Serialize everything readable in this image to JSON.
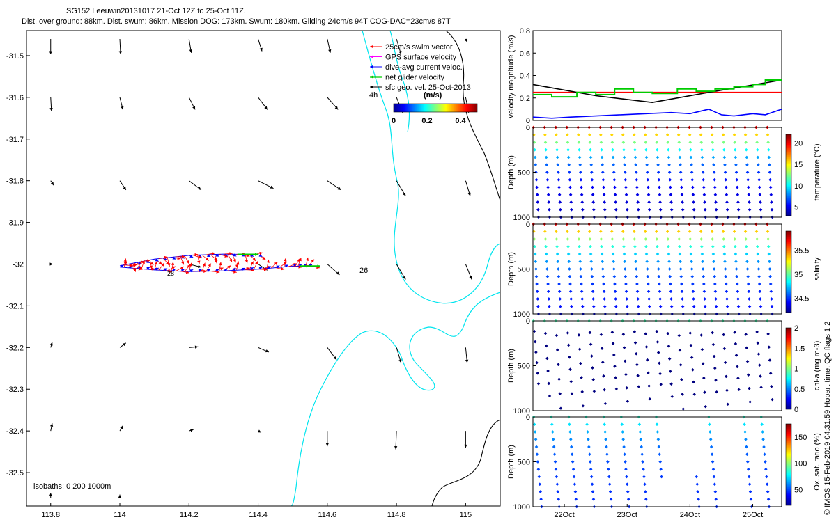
{
  "header": {
    "line1": "SG152 Leeuwin20131017 21-Oct 12Z to 25-Oct 11Z.",
    "line2": "Dist. over ground: 88km. Dist. swum: 86km. Mission DOG: 173km. Swum: 180km. Gliding 24cm/s 94T COG-DAC=23cm/s 87T"
  },
  "side_credit": "© IMOS 15-Feb-2019 04:31:59 Hobart time. QC flags 1  2",
  "colors": {
    "swim": "#ff0000",
    "gps": "#ff00ff",
    "dac": "#0000ff",
    "net": "#00cc00",
    "sfc": "#000000",
    "coast": "#00e5ee",
    "isobath": "#000000"
  },
  "chart_data": [
    {
      "id": "map",
      "type": "scatter",
      "title": "",
      "x_ticks": [
        "113.8",
        "114",
        "114.2",
        "114.4",
        "114.6",
        "114.8",
        "115"
      ],
      "y_ticks": [
        "-31.5",
        "-31.6",
        "-31.7",
        "-31.8",
        "-31.9",
        "-32",
        "-32.1",
        "-32.2",
        "-32.3",
        "-32.4",
        "-32.5"
      ],
      "xlim": [
        113.73,
        115.1
      ],
      "ylim": [
        -32.58,
        -31.44
      ],
      "legend": [
        {
          "label": "25cm/s swim vector",
          "color": "#ff0000"
        },
        {
          "label": "GPS surface velocity",
          "color": "#ff00ff"
        },
        {
          "label": "dive-avg current veloc.",
          "color": "#0000ff"
        },
        {
          "label": "net glider velocity",
          "color": "#00cc00"
        },
        {
          "label": "sfc geo. vel. 25-Oct-2013",
          "color": "#000000"
        }
      ],
      "legend_position": "top-right",
      "time_note": "4h",
      "colorbar": {
        "title": "(m/s)",
        "ticks": [
          "0",
          "0.2",
          "0.4"
        ],
        "range": [
          0,
          0.5
        ]
      },
      "annotations": [
        {
          "text": "26",
          "lon": 114.7,
          "lat": -31.99
        },
        {
          "text": "28",
          "lon": 114.14,
          "lat": -32.01
        }
      ],
      "isobath_note": "isobaths: 0   200  1000m",
      "track": {
        "leg_out": [
          [
            114.0,
            -32.007
          ],
          [
            114.1,
            -32.014
          ],
          [
            114.2,
            -32.018
          ],
          [
            114.3,
            -32.016
          ],
          [
            114.4,
            -32.012
          ],
          [
            114.5,
            -32.005
          ],
          [
            114.56,
            -32.005
          ]
        ],
        "leg_back": [
          [
            114.4,
            -31.977
          ],
          [
            114.3,
            -31.976
          ],
          [
            114.2,
            -31.979
          ],
          [
            114.1,
            -31.988
          ],
          [
            114.0,
            -32.004
          ]
        ]
      },
      "sfc_vectors": [
        {
          "lon": 113.8,
          "lat": -31.46,
          "u": 0,
          "v": -1
        },
        {
          "lon": 114.0,
          "lat": -31.46,
          "u": 0.05,
          "v": -1
        },
        {
          "lon": 114.2,
          "lat": -31.46,
          "u": 0.15,
          "v": -0.9
        },
        {
          "lon": 114.4,
          "lat": -31.46,
          "u": 0.25,
          "v": -0.8
        },
        {
          "lon": 114.6,
          "lat": -31.46,
          "u": 0.2,
          "v": -0.9
        },
        {
          "lon": 114.8,
          "lat": -31.46,
          "u": 0.3,
          "v": -1
        },
        {
          "lon": 115.0,
          "lat": -31.46,
          "u": 0.1,
          "v": -0.2
        },
        {
          "lon": 113.8,
          "lat": -31.6,
          "u": 0.05,
          "v": -0.9
        },
        {
          "lon": 114.0,
          "lat": -31.6,
          "u": 0.2,
          "v": -0.8
        },
        {
          "lon": 114.2,
          "lat": -31.6,
          "u": 0.4,
          "v": -0.8
        },
        {
          "lon": 114.4,
          "lat": -31.6,
          "u": 0.6,
          "v": -0.8
        },
        {
          "lon": 114.6,
          "lat": -31.6,
          "u": 0.7,
          "v": -0.8
        },
        {
          "lon": 114.8,
          "lat": -31.6,
          "u": 0.4,
          "v": -1
        },
        {
          "lon": 115.0,
          "lat": -31.6,
          "u": 0.2,
          "v": -1
        },
        {
          "lon": 113.8,
          "lat": -31.8,
          "u": 0.2,
          "v": -0.3
        },
        {
          "lon": 114.0,
          "lat": -31.8,
          "u": 0.4,
          "v": -0.6
        },
        {
          "lon": 114.2,
          "lat": -31.8,
          "u": 0.8,
          "v": -0.6
        },
        {
          "lon": 114.4,
          "lat": -31.8,
          "u": 1.0,
          "v": -0.5
        },
        {
          "lon": 114.6,
          "lat": -31.8,
          "u": 0.9,
          "v": -0.6
        },
        {
          "lon": 114.8,
          "lat": -31.8,
          "u": 0.6,
          "v": -1
        },
        {
          "lon": 115.0,
          "lat": -31.8,
          "u": 0.3,
          "v": -1
        },
        {
          "lon": 113.8,
          "lat": -32.0,
          "u": 0.15,
          "v": 0
        },
        {
          "lon": 114.2,
          "lat": -32.0,
          "u": 0.8,
          "v": -0.2
        },
        {
          "lon": 114.4,
          "lat": -32.0,
          "u": 0.6,
          "v": -0.4
        },
        {
          "lon": 114.6,
          "lat": -32.0,
          "u": 0.8,
          "v": -0.7
        },
        {
          "lon": 114.8,
          "lat": -32.0,
          "u": 0.6,
          "v": -1
        },
        {
          "lon": 115.0,
          "lat": -32.0,
          "u": 0.4,
          "v": -1
        },
        {
          "lon": 113.8,
          "lat": -32.2,
          "u": 0.1,
          "v": 0.35
        },
        {
          "lon": 114.0,
          "lat": -32.2,
          "u": 0.4,
          "v": 0.3
        },
        {
          "lon": 114.2,
          "lat": -32.2,
          "u": 0.6,
          "v": 0.05
        },
        {
          "lon": 114.4,
          "lat": -32.2,
          "u": 0.7,
          "v": -0.3
        },
        {
          "lon": 114.6,
          "lat": -32.2,
          "u": 0.6,
          "v": -0.8
        },
        {
          "lon": 114.8,
          "lat": -32.2,
          "u": 0.3,
          "v": -1
        },
        {
          "lon": 115.0,
          "lat": -32.2,
          "u": 0.1,
          "v": -1
        },
        {
          "lon": 113.8,
          "lat": -32.4,
          "u": 0.1,
          "v": 0.5
        },
        {
          "lon": 114.0,
          "lat": -32.4,
          "u": 0.2,
          "v": 0.35
        },
        {
          "lon": 114.2,
          "lat": -32.4,
          "u": 0.3,
          "v": 0.1
        },
        {
          "lon": 114.4,
          "lat": -32.4,
          "u": 0.2,
          "v": -0.1
        },
        {
          "lon": 114.6,
          "lat": -32.4,
          "u": 0.0,
          "v": -1
        },
        {
          "lon": 114.8,
          "lat": -32.4,
          "u": -0.05,
          "v": -1.2
        },
        {
          "lon": 115.0,
          "lat": -32.4,
          "u": 0.0,
          "v": -1.1
        },
        {
          "lon": 113.8,
          "lat": -32.56,
          "u": 0.0,
          "v": 0.3
        },
        {
          "lon": 114.0,
          "lat": -32.56,
          "u": 0.0,
          "v": 0.2
        }
      ]
    },
    {
      "id": "velocity",
      "type": "line",
      "ylabel": "velocity magnitude (m/s)",
      "y_ticks": [
        "0",
        "0.2",
        "0.4",
        "0.6",
        "0.8"
      ],
      "ylim": [
        0,
        0.8
      ],
      "xlim": [
        21.5,
        25.46
      ],
      "series": [
        {
          "color": "#ff0000",
          "x": [
            21.5,
            25.46
          ],
          "y": [
            0.25,
            0.25
          ]
        },
        {
          "color": "#000000",
          "x": [
            21.5,
            22.5,
            23.4,
            24.3,
            25.46
          ],
          "y": [
            0.32,
            0.22,
            0.16,
            0.25,
            0.36
          ]
        },
        {
          "color": "#0000ff",
          "x": [
            21.5,
            21.8,
            22.1,
            22.5,
            22.9,
            23.3,
            23.7,
            24.0,
            24.3,
            24.5,
            24.7,
            25.0,
            25.2,
            25.46
          ],
          "y": [
            0.03,
            0.02,
            0.03,
            0.04,
            0.05,
            0.06,
            0.07,
            0.06,
            0.1,
            0.05,
            0.04,
            0.06,
            0.05,
            0.1
          ]
        },
        {
          "color": "#00cc00",
          "x": [
            21.5,
            21.8,
            21.8,
            22.2,
            22.2,
            22.5,
            22.5,
            22.8,
            22.8,
            23.1,
            23.1,
            23.4,
            23.4,
            23.8,
            23.8,
            24.1,
            24.1,
            24.4,
            24.4,
            24.7,
            24.7,
            25.0,
            25.0,
            25.2,
            25.2,
            25.46
          ],
          "y": [
            0.23,
            0.23,
            0.21,
            0.21,
            0.25,
            0.25,
            0.23,
            0.23,
            0.28,
            0.28,
            0.25,
            0.25,
            0.24,
            0.24,
            0.28,
            0.28,
            0.26,
            0.26,
            0.28,
            0.28,
            0.3,
            0.3,
            0.32,
            0.32,
            0.36,
            0.36
          ]
        }
      ]
    },
    {
      "id": "temperature",
      "type": "scatter",
      "ylabel": "Depth (m)",
      "cbar_label": "temperature (°C)",
      "cbar_ticks": [
        "5",
        "10",
        "15",
        "20"
      ],
      "cbar_range": [
        3,
        22
      ],
      "y_ticks": [
        "0",
        "500",
        "1000"
      ],
      "ylim": [
        0,
        1000
      ],
      "colormap": "jet",
      "profile": {
        "x_start": 21.5,
        "x_end": 25.4,
        "n_profiles": 22,
        "surface_value": 20,
        "deep_value": 4
      }
    },
    {
      "id": "salinity",
      "type": "scatter",
      "ylabel": "Depth (m)",
      "cbar_label": "salinity",
      "cbar_ticks": [
        "34.5",
        "35",
        "35.5"
      ],
      "cbar_range": [
        34.2,
        35.9
      ],
      "y_ticks": [
        "0",
        "500",
        "1000"
      ],
      "ylim": [
        0,
        1000
      ],
      "colormap": "jet",
      "profile": {
        "x_start": 21.5,
        "x_end": 25.4,
        "n_profiles": 22,
        "surface_value": 35.7,
        "deep_value": 34.4
      }
    },
    {
      "id": "chla",
      "type": "scatter",
      "ylabel": "Depth (m)",
      "cbar_label": "chl-a (mg m-3)",
      "cbar_ticks": [
        "0",
        "0.5",
        "1",
        "1.5",
        "2"
      ],
      "cbar_range": [
        0,
        2
      ],
      "y_ticks": [
        "0",
        "500",
        "1000"
      ],
      "ylim": [
        0,
        1000
      ],
      "colormap": "jet",
      "profile": {
        "x_start": 21.5,
        "x_end": 25.4,
        "n_profiles": 22,
        "surface_value": 0.9,
        "deep_value": 0
      }
    },
    {
      "id": "oxygen",
      "type": "scatter",
      "ylabel": "Depth (m)",
      "cbar_label": "Ox. sat. ratio (%)",
      "cbar_ticks": [
        "50",
        "100",
        "150"
      ],
      "cbar_range": [
        20,
        175
      ],
      "y_ticks": [
        "0",
        "500",
        "1000"
      ],
      "ylim": [
        0,
        1000
      ],
      "colormap": "jet",
      "x_ticks": [
        "22Oct",
        "23Oct",
        "24Oct",
        "25Oct"
      ],
      "x_tick_values": [
        22,
        23,
        24,
        25
      ],
      "gaps": [
        [
          23.55,
          24.1
        ],
        [
          24.55,
          24.85
        ]
      ],
      "profile": {
        "x_start": 21.5,
        "x_end": 25.4,
        "n_profiles": 14,
        "surface_value": 85,
        "deep_value": 45
      }
    }
  ]
}
